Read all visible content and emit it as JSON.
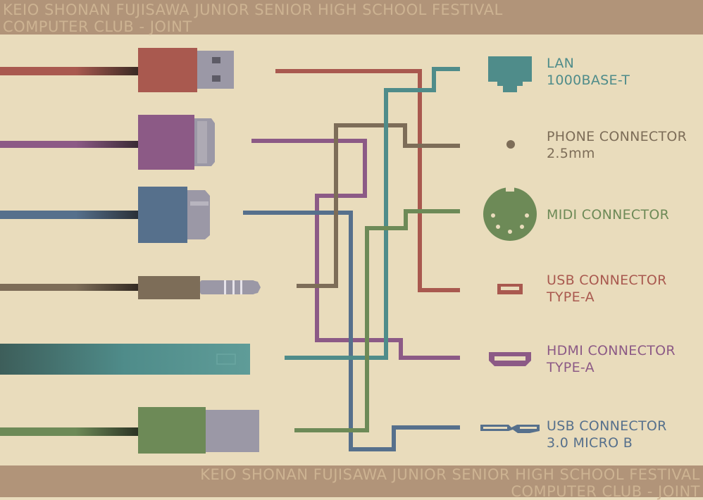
{
  "header": {
    "line1": "KEIO SHONAN FUJISAWA JUNIOR SENIOR HIGH SCHOOL FESTIVAL",
    "line2": "COMPUTER CLUB - JOINT"
  },
  "footer": {
    "line1": "KEIO SHONAN FUJISAWA JUNIOR SENIOR HIGH SCHOOL FESTIVAL",
    "line2": "COMPUTER CLUB - JOINT"
  },
  "connectors": [
    {
      "line1": "LAN",
      "line2": "1000BASE-T",
      "color": "#4f8c8a"
    },
    {
      "line1": "PHONE CONNECTOR",
      "line2": "2.5mm",
      "color": "#7d6d58"
    },
    {
      "line1": "MIDI CONNECTOR",
      "line2": "",
      "color": "#6d8a57"
    },
    {
      "line1": "USB CONNECTOR",
      "line2": "TYPE-A",
      "color": "#a9594f"
    },
    {
      "line1": "HDMI CONNECTOR",
      "line2": "TYPE-A",
      "color": "#8c5a86"
    },
    {
      "line1": "USB CONNECTOR",
      "line2": "3.0 MICRO B",
      "color": "#56708c"
    }
  ],
  "colors": {
    "background": "#e9dcbc",
    "band": "#b19479",
    "band_text": "#cdb392",
    "usb_red": "#a9594f",
    "hdmi_purple": "#8c5a86",
    "micro_blue": "#56708c",
    "phone_brown": "#7d6d58",
    "lan_teal": "#4f8c8a",
    "midi_green": "#6d8a57"
  },
  "icons": [
    "lan-port-icon",
    "phone-jack-icon",
    "midi-port-icon",
    "usb-a-port-icon",
    "hdmi-port-icon",
    "usb-micro-b-port-icon"
  ]
}
